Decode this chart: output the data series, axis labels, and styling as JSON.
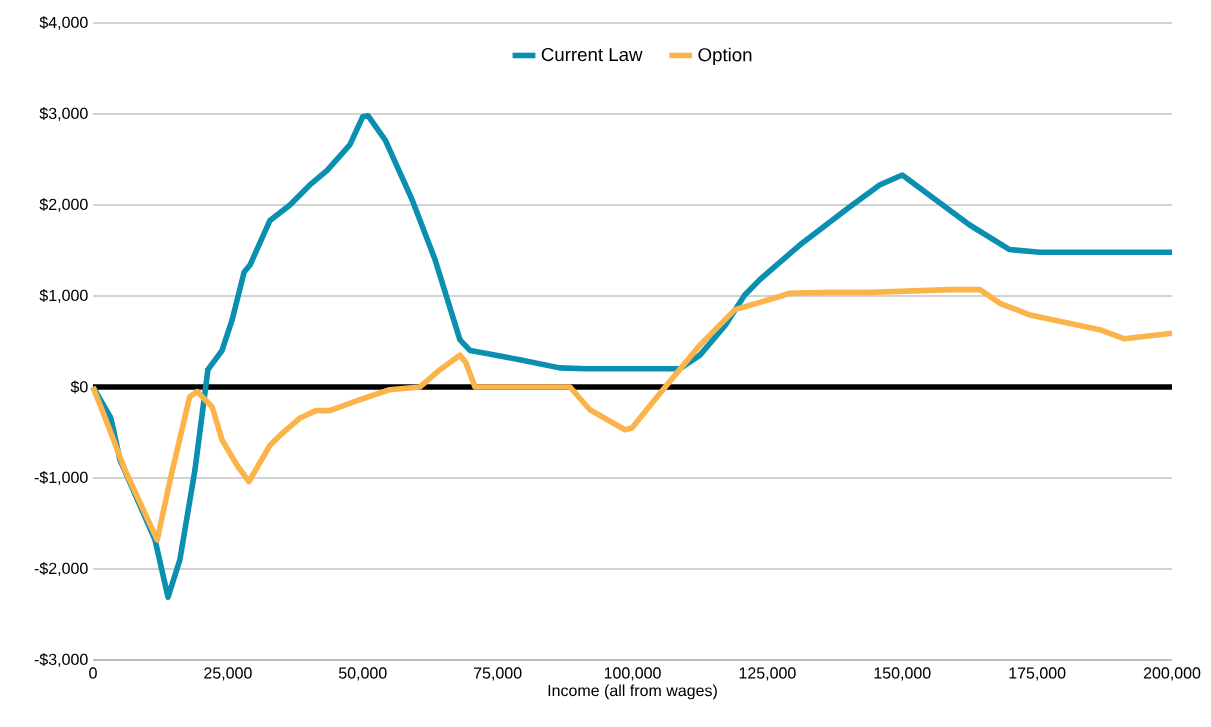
{
  "chart_data": {
    "type": "line",
    "xlabel": "Income (all from wages)",
    "xlim": [
      0,
      200000
    ],
    "ylim": [
      -3000,
      4000
    ],
    "xticks": [
      0,
      {
        "value": 25000,
        "label": "25,000"
      },
      {
        "value": 50000,
        "label": "50,000"
      },
      {
        "value": 75000,
        "label": "75,000"
      },
      {
        "value": 100000,
        "label": "100,000"
      },
      {
        "value": 125000,
        "label": "125,000"
      },
      {
        "value": 150000,
        "label": "150,000"
      },
      {
        "value": 175000,
        "label": "175,000"
      },
      {
        "value": 200000,
        "label": "200,000"
      }
    ],
    "yticks": [
      {
        "value": -3000,
        "label": "-$3,000"
      },
      {
        "value": -2000,
        "label": "-$2,000"
      },
      {
        "value": -1000,
        "label": "-$1,000"
      },
      {
        "value": 0,
        "label": "$0"
      },
      {
        "value": 1000,
        "label": "$1,000"
      },
      {
        "value": 2000,
        "label": "$2,000"
      },
      {
        "value": 3000,
        "label": "$3,000"
      },
      {
        "value": 4000,
        "label": "$4,000"
      }
    ],
    "grid": "y",
    "legend": "top",
    "line_style": "solid",
    "marker": "none",
    "ref_lines": [
      {
        "axis": "y",
        "value": 0,
        "color": "#000000"
      }
    ],
    "series": [
      {
        "name": "Current Law",
        "color": "#0a8fb0",
        "x": [
          0,
          3300,
          5000,
          11500,
          13900,
          16100,
          18900,
          21300,
          23900,
          25800,
          28000,
          29100,
          32800,
          36500,
          40200,
          43400,
          47600,
          50000,
          51000,
          54200,
          59200,
          63400,
          68000,
          69900,
          72700,
          79100,
          86500,
          91400,
          108800,
          112500,
          117200,
          120800,
          123600,
          131000,
          140300,
          145800,
          150000,
          155000,
          162500,
          169900,
          175500,
          200000
        ],
        "values": [
          0,
          -340,
          -800,
          -1680,
          -2310,
          -1900,
          -910,
          190,
          400,
          740,
          1260,
          1340,
          1830,
          2000,
          2220,
          2380,
          2660,
          2970,
          2980,
          2710,
          2050,
          1400,
          520,
          400,
          370,
          300,
          210,
          200,
          200,
          350,
          680,
          1010,
          1180,
          1560,
          1980,
          2220,
          2330,
          2110,
          1780,
          1510,
          1480,
          1480
        ]
      },
      {
        "name": "Option",
        "color": "#fbb44a",
        "x": [
          0,
          3100,
          5900,
          11900,
          14300,
          17900,
          19300,
          22100,
          23900,
          26700,
          28900,
          32800,
          34700,
          38400,
          41300,
          43900,
          49500,
          55000,
          60600,
          64300,
          68000,
          69100,
          70800,
          88400,
          92100,
          98600,
          99900,
          105100,
          112500,
          119000,
          123600,
          129200,
          136600,
          144000,
          158900,
          164400,
          168100,
          173700,
          186600,
          191200,
          194000,
          200000
        ],
        "values": [
          0,
          -470,
          -910,
          -1680,
          -1020,
          -110,
          -50,
          -220,
          -580,
          -860,
          -1040,
          -640,
          -530,
          -340,
          -260,
          -260,
          -140,
          -30,
          0,
          190,
          350,
          270,
          0,
          0,
          -250,
          -470,
          -450,
          -70,
          460,
          850,
          930,
          1030,
          1040,
          1040,
          1070,
          1070,
          920,
          790,
          630,
          530,
          550,
          590
        ]
      }
    ]
  }
}
